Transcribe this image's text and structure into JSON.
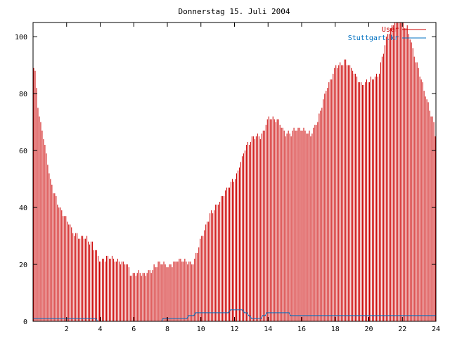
{
  "chart_data": {
    "type": "bar",
    "title": "Donnerstag 15. Juli 2004",
    "xlabel": "",
    "ylabel": "",
    "xlim": [
      0,
      24
    ],
    "ylim": [
      0,
      105
    ],
    "xticks": [
      2,
      4,
      6,
      8,
      10,
      12,
      14,
      16,
      18,
      20,
      22,
      24
    ],
    "yticks": [
      0,
      20,
      40,
      60,
      80,
      100
    ],
    "legend": "top-right",
    "grid": false,
    "colors": {
      "series1": "#cc0000",
      "series2": "#0070c0",
      "axis": "#000000"
    },
    "hour_anchors": {
      "hours": [
        0,
        0.1,
        0.3,
        0.6,
        1.0,
        1.5,
        2.0,
        2.5,
        3.0,
        3.5,
        4.0,
        4.5,
        5.0,
        5.5,
        5.8,
        6.5,
        7.0,
        7.5,
        8.0,
        8.5,
        9.0,
        9.5,
        9.8,
        10.5,
        11.0,
        11.5,
        12.0,
        12.5,
        13.0,
        13.5,
        14.0,
        14.5,
        15.0,
        15.5,
        16.0,
        16.5,
        17.0,
        17.5,
        18.0,
        18.5,
        19.0,
        19.5,
        20.0,
        20.5,
        21.0,
        21.5,
        22.0,
        22.3,
        22.6,
        23.0,
        23.4,
        23.8,
        24.0
      ],
      "usage": [
        89,
        86,
        72,
        64,
        50,
        40,
        35,
        31,
        29,
        27,
        22,
        22,
        21,
        21,
        16,
        17,
        18,
        20,
        20,
        21,
        21,
        21,
        26,
        37,
        42,
        46,
        50,
        60,
        64,
        65,
        72,
        70,
        66,
        67,
        67,
        66,
        72,
        82,
        90,
        91,
        88,
        84,
        84,
        86,
        100,
        105,
        105,
        103,
        95,
        86,
        78,
        71,
        63
      ],
      "stuttgart": [
        1,
        1,
        1,
        1,
        1,
        1,
        1,
        1,
        1,
        1,
        0,
        0,
        0,
        0,
        0,
        0,
        0,
        0,
        1,
        1,
        1,
        2,
        3,
        3,
        3,
        3,
        4,
        4,
        1,
        1,
        3,
        3,
        3,
        2,
        2,
        2,
        2,
        2,
        2,
        2,
        2,
        2,
        2,
        2,
        2,
        2,
        2,
        2,
        2,
        2,
        2,
        2,
        2
      ]
    },
    "samples": 288,
    "series": [
      {
        "name": "User",
        "color": "#cc0000"
      },
      {
        "name": "Stuttgart.kr",
        "color": "#0070c0"
      }
    ]
  }
}
